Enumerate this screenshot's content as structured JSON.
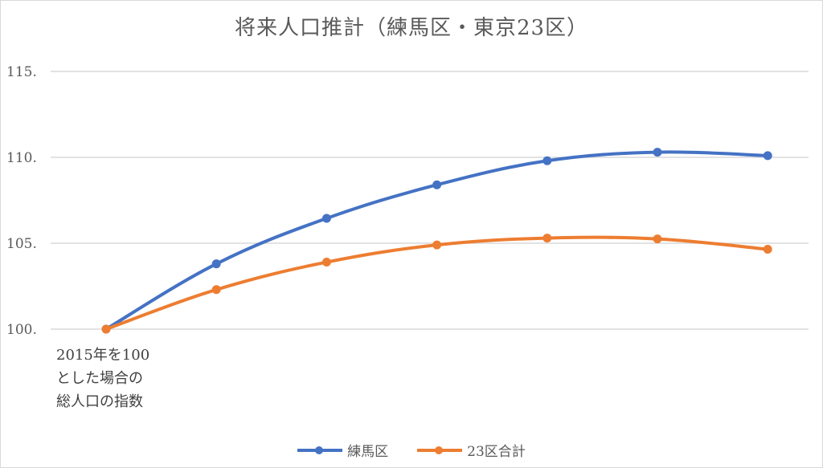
{
  "chart_data": {
    "type": "line",
    "title": "将来人口推計（練馬区・東京23区）",
    "x": [
      "",
      "",
      "",
      "",
      "",
      "",
      ""
    ],
    "series": [
      {
        "name": "練馬区",
        "color": "#4472c4",
        "values": [
          100.0,
          103.8,
          106.45,
          108.4,
          109.8,
          110.3,
          110.1
        ]
      },
      {
        "name": "23区合計",
        "color": "#ed7d31",
        "values": [
          100.0,
          102.3,
          103.9,
          104.9,
          105.3,
          105.25,
          104.65
        ]
      }
    ],
    "ylim": [
      100,
      115
    ],
    "yticks": [
      "100.",
      "105.",
      "110.",
      "115."
    ],
    "grid": true,
    "legend": "bottom"
  },
  "note": {
    "line1": "2015年を100",
    "line2": "とした場合の",
    "line3": "総人口の指数"
  }
}
